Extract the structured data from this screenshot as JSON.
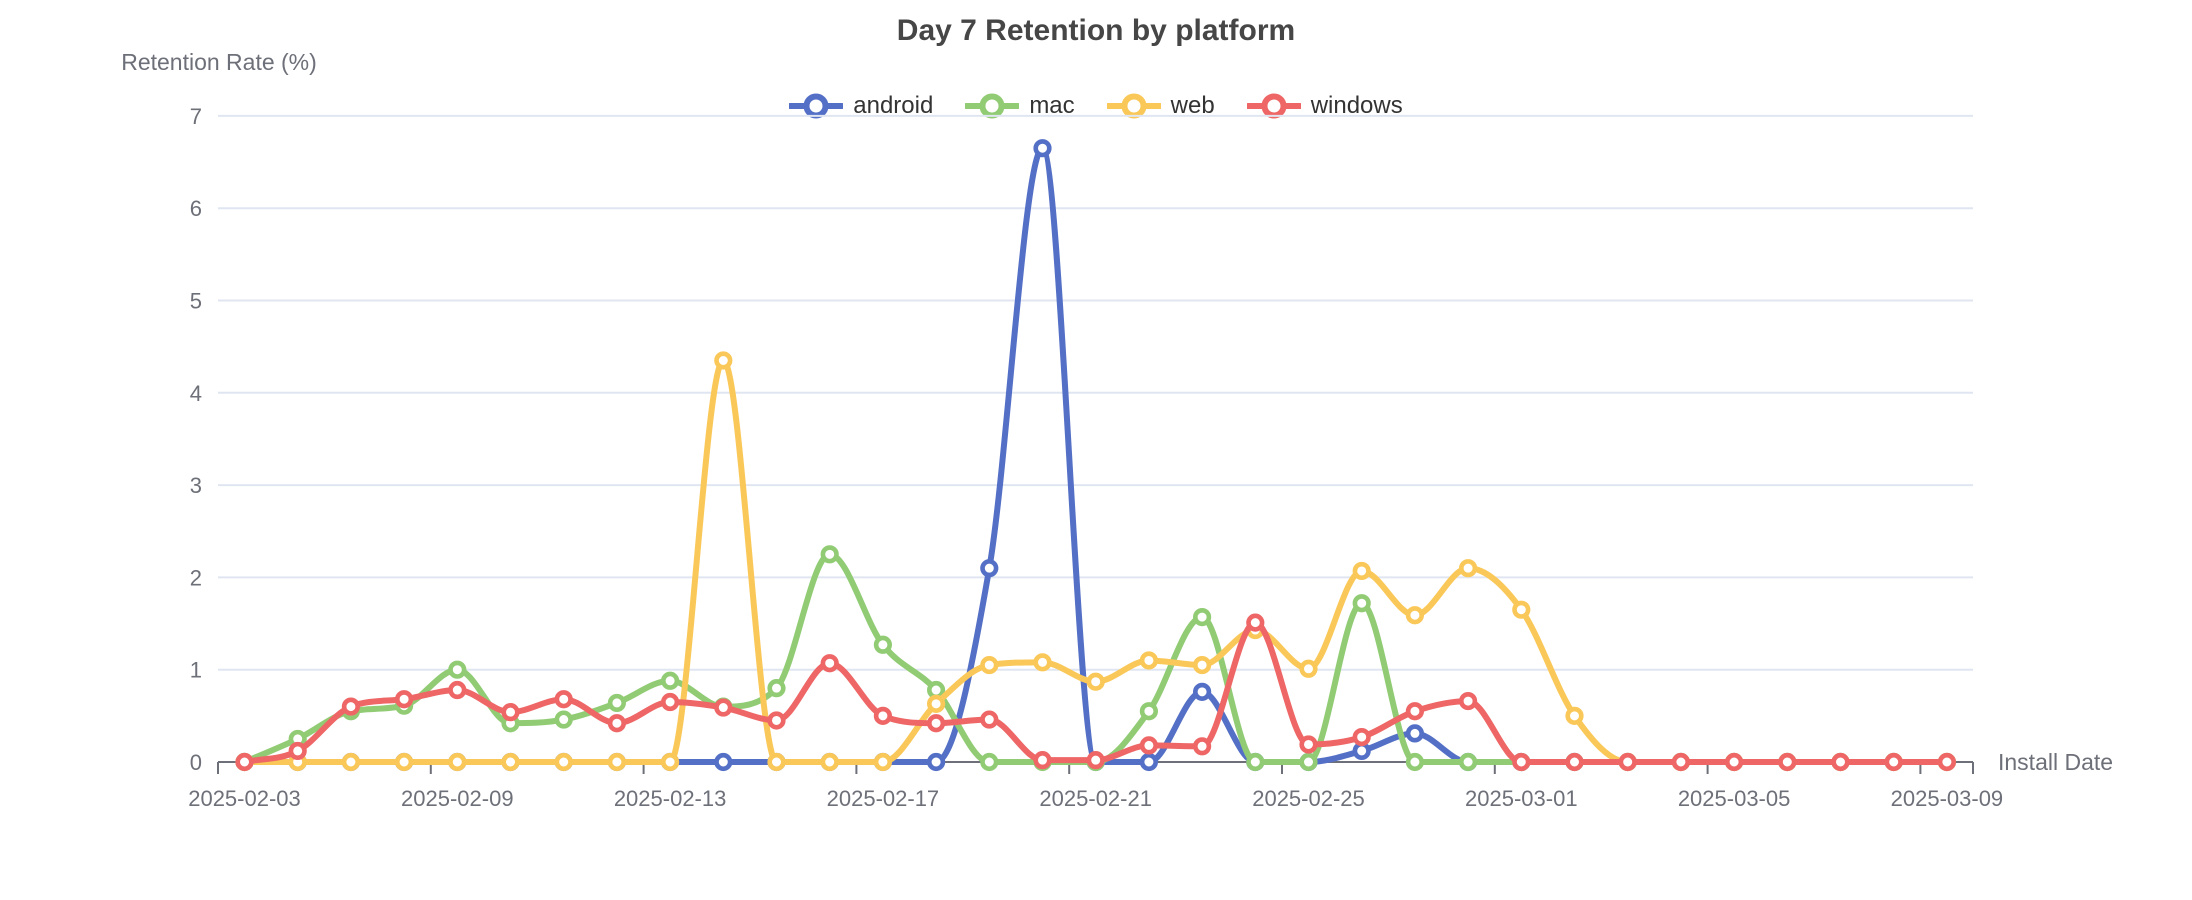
{
  "title": "Day 7 Retention by platform",
  "y_axis": {
    "name": "Retention Rate (%)",
    "tick_labels": [
      "0",
      "1",
      "2",
      "3",
      "4",
      "5",
      "6",
      "7"
    ],
    "min": 0,
    "max": 7
  },
  "x_axis": {
    "name": "Install Date",
    "tick_labels": [
      "2025-02-03",
      "2025-02-09",
      "2025-02-13",
      "2025-02-17",
      "2025-02-21",
      "2025-02-25",
      "2025-03-01",
      "2025-03-05",
      "2025-03-09"
    ],
    "label_interval": 4,
    "num_points": 33
  },
  "style_colors": {
    "grid_line": "#E0E6F1",
    "axis_line": "#6E7079",
    "tick_label": "#6E7079",
    "axis_name": "#6E7079",
    "title_text": "#464646",
    "legend_text": "#333333",
    "background": "#ffffff"
  },
  "chart_data": {
    "type": "line",
    "smooth": true,
    "grid": true,
    "legend_position": "top",
    "title": "Day 7 Retention by platform",
    "xlabel": "Install Date",
    "ylabel": "Retention Rate (%)",
    "ylim": [
      0,
      7
    ],
    "x_tick_labels": [
      "2025-02-03",
      "2025-02-09",
      "2025-02-13",
      "2025-02-17",
      "2025-02-21",
      "2025-02-25",
      "2025-03-01",
      "2025-03-05",
      "2025-03-09"
    ],
    "x_tick_indices": [
      0,
      4,
      8,
      12,
      16,
      20,
      24,
      28,
      32
    ],
    "series": [
      {
        "name": "android",
        "color": "#5470C6",
        "values": [
          0,
          0,
          0,
          0,
          0,
          0,
          0,
          0,
          0,
          0,
          0,
          0,
          0,
          0,
          2.1,
          6.65,
          0,
          0,
          0.76,
          0,
          0,
          0.12,
          0.31,
          0,
          0,
          0,
          0,
          0,
          0,
          0,
          0,
          0,
          0
        ]
      },
      {
        "name": "mac",
        "color": "#91CC75",
        "values": [
          0,
          0.25,
          0.55,
          0.61,
          1.0,
          0.42,
          0.46,
          0.64,
          0.88,
          0.6,
          0.8,
          2.25,
          1.27,
          0.78,
          0,
          0,
          0,
          0.55,
          1.57,
          0,
          0,
          1.72,
          0,
          0,
          0,
          0,
          0,
          0,
          0,
          0,
          0,
          0,
          0
        ]
      },
      {
        "name": "web",
        "color": "#FAC858",
        "values": [
          0,
          0,
          0,
          0,
          0,
          0,
          0,
          0,
          0,
          4.35,
          0,
          0,
          0,
          0.63,
          1.05,
          1.08,
          0.87,
          1.1,
          1.05,
          1.43,
          1.01,
          2.07,
          1.59,
          2.1,
          1.65,
          0.5,
          0,
          0,
          0,
          0,
          0,
          0,
          0
        ]
      },
      {
        "name": "windows",
        "color": "#EE6666",
        "values": [
          0,
          0.12,
          0.6,
          0.68,
          0.78,
          0.54,
          0.68,
          0.42,
          0.65,
          0.59,
          0.45,
          1.07,
          0.5,
          0.42,
          0.46,
          0.02,
          0.02,
          0.18,
          0.17,
          1.51,
          0.19,
          0.27,
          0.55,
          0.66,
          0,
          0,
          0,
          0,
          0,
          0,
          0,
          0,
          0
        ]
      }
    ]
  }
}
